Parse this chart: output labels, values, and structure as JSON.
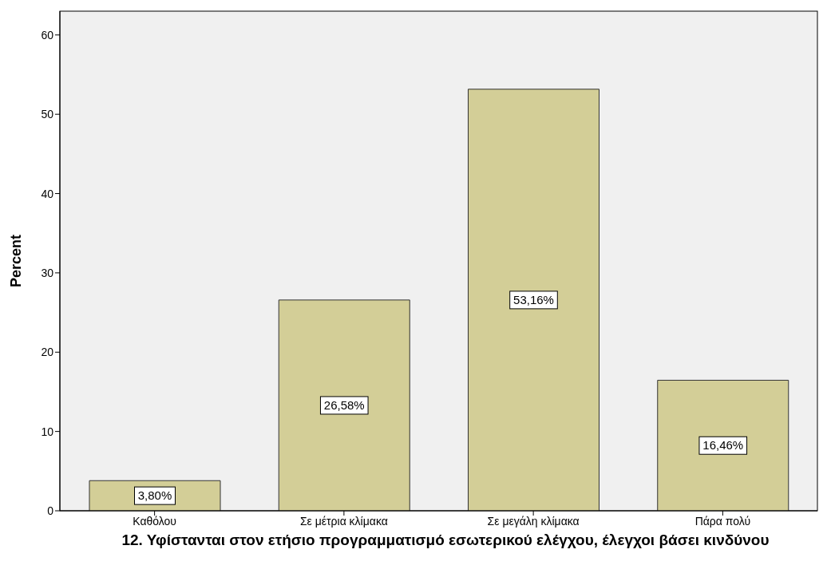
{
  "chart_data": {
    "type": "bar",
    "xlabel": "12. Υφίστανται στον ετήσιο προγραμματισμό εσωτερικού ελέγχου, έλεγχοι βάσει κινδύνου",
    "ylabel": "Percent",
    "categories": [
      "Καθόλου",
      "Σε μέτρια κλίμακα",
      "Σε μεγάλη κλίμακα",
      "Πάρα πολύ"
    ],
    "values": [
      3.8,
      26.58,
      53.16,
      16.46
    ],
    "value_labels": [
      "3,80%",
      "26,58%",
      "53,16%",
      "16,46%"
    ],
    "color": "#d3ce97",
    "ylim": [
      0,
      63
    ],
    "yticks": [
      0,
      10,
      20,
      30,
      40,
      50,
      60
    ]
  }
}
